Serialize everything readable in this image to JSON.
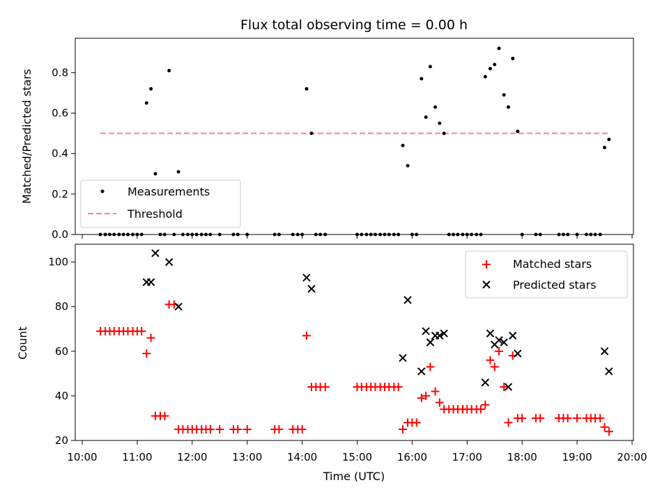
{
  "chart_data": [
    {
      "type": "scatter",
      "title": "Flux total observing time = 0.00 h",
      "xlabel": "",
      "ylabel": "Matched/Predicted stars",
      "xlim": [
        10.0,
        20.0
      ],
      "ylim": [
        0.0,
        0.97
      ],
      "yticks": [
        0.0,
        0.2,
        0.4,
        0.6,
        0.8
      ],
      "ytick_labels": [
        "0.0",
        "0.2",
        "0.4",
        "0.6",
        "0.8"
      ],
      "legend_position": "lower-left",
      "threshold": {
        "name": "Threshold",
        "y": 0.5,
        "x_range": [
          10.33,
          19.6
        ],
        "color": "#ff7f7f",
        "style": "dashed"
      },
      "series": [
        {
          "name": "Measurements",
          "color": "#000000",
          "marker": "dot",
          "points": [
            [
              10.33,
              0
            ],
            [
              10.42,
              0
            ],
            [
              10.5,
              0
            ],
            [
              10.58,
              0
            ],
            [
              10.67,
              0
            ],
            [
              10.75,
              0
            ],
            [
              10.83,
              0
            ],
            [
              10.92,
              0
            ],
            [
              11.0,
              0
            ],
            [
              11.08,
              0
            ],
            [
              11.17,
              0.65
            ],
            [
              11.25,
              0.72
            ],
            [
              11.33,
              0.3
            ],
            [
              11.42,
              0
            ],
            [
              11.5,
              0
            ],
            [
              11.58,
              0.81
            ],
            [
              11.67,
              0
            ],
            [
              11.75,
              0.31
            ],
            [
              11.83,
              0
            ],
            [
              11.92,
              0
            ],
            [
              12.0,
              0
            ],
            [
              12.08,
              0
            ],
            [
              12.17,
              0
            ],
            [
              12.25,
              0
            ],
            [
              12.33,
              0
            ],
            [
              12.5,
              0
            ],
            [
              12.75,
              0
            ],
            [
              12.83,
              0
            ],
            [
              13.0,
              0
            ],
            [
              13.5,
              0
            ],
            [
              13.58,
              0
            ],
            [
              13.83,
              0
            ],
            [
              13.92,
              0
            ],
            [
              14.0,
              0
            ],
            [
              14.08,
              0.72
            ],
            [
              14.17,
              0.5
            ],
            [
              14.25,
              0
            ],
            [
              14.33,
              0
            ],
            [
              14.42,
              0
            ],
            [
              15.0,
              0
            ],
            [
              15.08,
              0
            ],
            [
              15.17,
              0
            ],
            [
              15.25,
              0
            ],
            [
              15.33,
              0
            ],
            [
              15.42,
              0
            ],
            [
              15.5,
              0
            ],
            [
              15.58,
              0
            ],
            [
              15.67,
              0
            ],
            [
              15.75,
              0
            ],
            [
              15.83,
              0.44
            ],
            [
              15.92,
              0.34
            ],
            [
              16.0,
              0
            ],
            [
              16.08,
              0
            ],
            [
              16.17,
              0.77
            ],
            [
              16.25,
              0.58
            ],
            [
              16.33,
              0.83
            ],
            [
              16.42,
              0.63
            ],
            [
              16.5,
              0.55
            ],
            [
              16.58,
              0.5
            ],
            [
              16.67,
              0
            ],
            [
              16.75,
              0
            ],
            [
              16.83,
              0
            ],
            [
              16.92,
              0
            ],
            [
              17.0,
              0
            ],
            [
              17.08,
              0
            ],
            [
              17.17,
              0
            ],
            [
              17.25,
              0
            ],
            [
              17.33,
              0.78
            ],
            [
              17.42,
              0.82
            ],
            [
              17.5,
              0.84
            ],
            [
              17.58,
              0.92
            ],
            [
              17.67,
              0.69
            ],
            [
              17.75,
              0.63
            ],
            [
              17.83,
              0.87
            ],
            [
              17.92,
              0.51
            ],
            [
              18.0,
              0
            ],
            [
              18.25,
              0
            ],
            [
              18.33,
              0
            ],
            [
              18.67,
              0
            ],
            [
              18.75,
              0
            ],
            [
              18.83,
              0
            ],
            [
              19.0,
              0
            ],
            [
              19.17,
              0
            ],
            [
              19.25,
              0
            ],
            [
              19.33,
              0
            ],
            [
              19.42,
              0
            ],
            [
              19.5,
              0.43
            ],
            [
              19.58,
              0.47
            ]
          ]
        }
      ]
    },
    {
      "type": "scatter",
      "title": "",
      "xlabel": "Time (UTC)",
      "ylabel": "Count",
      "xlim": [
        10.0,
        20.0
      ],
      "ylim": [
        20,
        108
      ],
      "xticks": [
        10,
        11,
        12,
        13,
        14,
        15,
        16,
        17,
        18,
        19,
        20
      ],
      "xtick_labels": [
        "10:00",
        "11:00",
        "12:00",
        "13:00",
        "14:00",
        "15:00",
        "16:00",
        "17:00",
        "18:00",
        "19:00",
        "20:00"
      ],
      "yticks": [
        20,
        40,
        60,
        80,
        100
      ],
      "ytick_labels": [
        "20",
        "40",
        "60",
        "80",
        "100"
      ],
      "legend_position": "upper-right",
      "series": [
        {
          "name": "Matched stars",
          "color": "#ff0000",
          "marker": "plus",
          "points": [
            [
              10.33,
              69
            ],
            [
              10.42,
              69
            ],
            [
              10.5,
              69
            ],
            [
              10.58,
              69
            ],
            [
              10.67,
              69
            ],
            [
              10.75,
              69
            ],
            [
              10.83,
              69
            ],
            [
              10.92,
              69
            ],
            [
              11.0,
              69
            ],
            [
              11.08,
              69
            ],
            [
              11.17,
              59
            ],
            [
              11.25,
              66
            ],
            [
              11.33,
              31
            ],
            [
              11.42,
              31
            ],
            [
              11.5,
              31
            ],
            [
              11.58,
              81
            ],
            [
              11.67,
              81
            ],
            [
              11.75,
              25
            ],
            [
              11.83,
              25
            ],
            [
              11.92,
              25
            ],
            [
              12.0,
              25
            ],
            [
              12.08,
              25
            ],
            [
              12.17,
              25
            ],
            [
              12.25,
              25
            ],
            [
              12.33,
              25
            ],
            [
              12.5,
              25
            ],
            [
              12.75,
              25
            ],
            [
              12.83,
              25
            ],
            [
              13.0,
              25
            ],
            [
              13.5,
              25
            ],
            [
              13.58,
              25
            ],
            [
              13.83,
              25
            ],
            [
              13.92,
              25
            ],
            [
              14.0,
              25
            ],
            [
              14.08,
              67
            ],
            [
              14.17,
              44
            ],
            [
              14.25,
              44
            ],
            [
              14.33,
              44
            ],
            [
              14.42,
              44
            ],
            [
              15.0,
              44
            ],
            [
              15.08,
              44
            ],
            [
              15.17,
              44
            ],
            [
              15.25,
              44
            ],
            [
              15.33,
              44
            ],
            [
              15.42,
              44
            ],
            [
              15.5,
              44
            ],
            [
              15.58,
              44
            ],
            [
              15.67,
              44
            ],
            [
              15.75,
              44
            ],
            [
              15.83,
              25
            ],
            [
              15.92,
              28
            ],
            [
              16.0,
              28
            ],
            [
              16.08,
              28
            ],
            [
              16.17,
              39
            ],
            [
              16.25,
              40
            ],
            [
              16.33,
              53
            ],
            [
              16.42,
              42
            ],
            [
              16.5,
              37
            ],
            [
              16.58,
              34
            ],
            [
              16.67,
              34
            ],
            [
              16.75,
              34
            ],
            [
              16.83,
              34
            ],
            [
              16.92,
              34
            ],
            [
              17.0,
              34
            ],
            [
              17.08,
              34
            ],
            [
              17.17,
              34
            ],
            [
              17.25,
              34
            ],
            [
              17.33,
              36
            ],
            [
              17.42,
              56
            ],
            [
              17.5,
              53
            ],
            [
              17.58,
              60
            ],
            [
              17.67,
              44
            ],
            [
              17.75,
              28
            ],
            [
              17.83,
              58
            ],
            [
              17.92,
              30
            ],
            [
              18.0,
              30
            ],
            [
              18.25,
              30
            ],
            [
              18.33,
              30
            ],
            [
              18.67,
              30
            ],
            [
              18.75,
              30
            ],
            [
              18.83,
              30
            ],
            [
              19.0,
              30
            ],
            [
              19.17,
              30
            ],
            [
              19.25,
              30
            ],
            [
              19.33,
              30
            ],
            [
              19.42,
              30
            ],
            [
              19.5,
              26
            ],
            [
              19.58,
              24
            ]
          ]
        },
        {
          "name": "Predicted stars",
          "color": "#000000",
          "marker": "x",
          "points": [
            [
              11.17,
              91
            ],
            [
              11.25,
              91
            ],
            [
              11.33,
              104
            ],
            [
              11.58,
              100
            ],
            [
              11.75,
              80
            ],
            [
              14.08,
              93
            ],
            [
              14.17,
              88
            ],
            [
              15.83,
              57
            ],
            [
              15.92,
              83
            ],
            [
              16.17,
              51
            ],
            [
              16.25,
              69
            ],
            [
              16.33,
              64
            ],
            [
              16.42,
              67
            ],
            [
              16.5,
              67
            ],
            [
              16.58,
              68
            ],
            [
              17.33,
              46
            ],
            [
              17.42,
              68
            ],
            [
              17.5,
              63
            ],
            [
              17.58,
              65
            ],
            [
              17.67,
              64
            ],
            [
              17.75,
              44
            ],
            [
              17.83,
              67
            ],
            [
              17.92,
              59
            ],
            [
              19.5,
              60
            ],
            [
              19.58,
              51
            ]
          ]
        }
      ]
    }
  ]
}
